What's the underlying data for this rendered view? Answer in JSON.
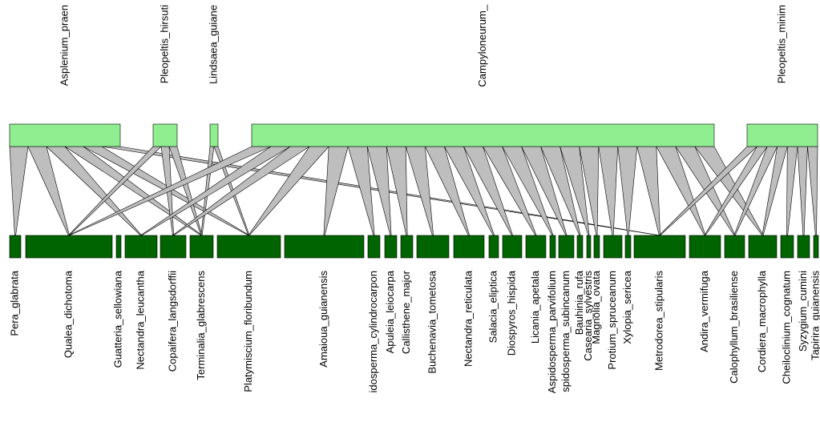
{
  "upper_nodes": [
    "Asplenium_praen",
    "Pleopeltis_hirsuti",
    "Lindsaea_guiane",
    "Campyloneurum_",
    "Pleopeltis_minim"
  ],
  "lower_nodes": [
    "Pera_glabrata",
    "Qualea_dichotoma",
    "Guatteria_sellowiana",
    "Nectandra_leucantha",
    "Copaifera_langsdorffii",
    "Terminalia_glabrescens",
    "Platymiscium_floribundum",
    "Amaioua_guianensis",
    "idosperma_cylindrocarpon",
    "Apuleia_leiocarpa",
    "Callisthene_major",
    "Buchenavia_tometosa",
    "Nectandra_reticulata",
    "Salacia_eliptica",
    "Diospyros_hispida",
    "Licania_apetala",
    "Aspidosperma_parvifolium",
    "spidosperma_subincanum",
    "Bauhinia_rufa",
    "Casearia_sylvestris",
    "Magnolia_ovata",
    "Protium_spruceanum",
    "Xylopia_sericea",
    "Metrodorea_stipularis",
    "Andira_vermifuga",
    "Calophyllum_brasiliense",
    "Cordiera_macrophylla",
    "Cheiloclinium_cognatum",
    "Syzygium_cumini",
    "Tapirira_guianensis"
  ],
  "links": [
    [
      0,
      0
    ],
    [
      0,
      1
    ],
    [
      0,
      3
    ],
    [
      0,
      5
    ],
    [
      0,
      6
    ],
    [
      0,
      23
    ],
    [
      1,
      1
    ],
    [
      1,
      4
    ],
    [
      1,
      5
    ],
    [
      2,
      5
    ],
    [
      2,
      6
    ],
    [
      3,
      1
    ],
    [
      3,
      3
    ],
    [
      3,
      4
    ],
    [
      3,
      6
    ],
    [
      3,
      7
    ],
    [
      3,
      8
    ],
    [
      3,
      9
    ],
    [
      3,
      10
    ],
    [
      3,
      11
    ],
    [
      3,
      12
    ],
    [
      3,
      13
    ],
    [
      3,
      14
    ],
    [
      3,
      15
    ],
    [
      3,
      16
    ],
    [
      3,
      17
    ],
    [
      3,
      18
    ],
    [
      3,
      19
    ],
    [
      3,
      20
    ],
    [
      3,
      21
    ],
    [
      3,
      22
    ],
    [
      3,
      23
    ],
    [
      3,
      24
    ],
    [
      3,
      25
    ],
    [
      3,
      26
    ],
    [
      4,
      23
    ],
    [
      4,
      24
    ],
    [
      4,
      25
    ],
    [
      4,
      26
    ],
    [
      4,
      27
    ],
    [
      4,
      28
    ],
    [
      4,
      29
    ]
  ]
}
